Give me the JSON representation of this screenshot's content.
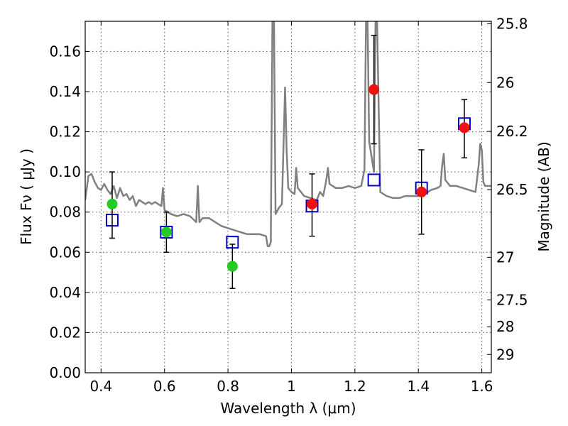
{
  "chart_data": {
    "type": "scatter",
    "xlabel": "Wavelength  λ (μm)",
    "ylabel": "Flux  Fν  ( μJy )",
    "ylabel_right": "Magnitude (AB)",
    "xlim": [
      0.35,
      1.63
    ],
    "ylim": [
      0.0,
      0.175
    ],
    "grid": true,
    "x_ticks": [
      0.4,
      0.6,
      0.8,
      1.0,
      1.2,
      1.4,
      1.6
    ],
    "x_tick_labels": [
      "0.4",
      "0.6",
      "0.8",
      "1",
      "1.2",
      "1.4",
      "1.6"
    ],
    "y_ticks": [
      0.0,
      0.02,
      0.04,
      0.06,
      0.08,
      0.1,
      0.12,
      0.14,
      0.16
    ],
    "y_tick_labels": [
      "0.00",
      "0.02",
      "0.04",
      "0.06",
      "0.08",
      "0.10",
      "0.12",
      "0.14",
      "0.16"
    ],
    "right_ticks": [
      {
        "label": "25.8",
        "flux": 0.1738
      },
      {
        "label": "26",
        "flux": 0.1445
      },
      {
        "label": "26.2",
        "flux": 0.1202
      },
      {
        "label": "26.5",
        "flux": 0.0912
      },
      {
        "label": "27",
        "flux": 0.0575
      },
      {
        "label": "27.5",
        "flux": 0.0363
      },
      {
        "label": "28",
        "flux": 0.0229
      },
      {
        "label": "29",
        "flux": 0.0091
      }
    ],
    "colors": {
      "model_line": "#808080",
      "green_points": "#22cc22",
      "red_points": "#ee1111",
      "model_squares": "#0000cc",
      "error_bars": "#000000"
    },
    "series": [
      {
        "kind": "line",
        "points": [
          [
            0.35,
            0.086
          ],
          [
            0.36,
            0.098
          ],
          [
            0.37,
            0.099
          ],
          [
            0.38,
            0.095
          ],
          [
            0.39,
            0.092
          ],
          [
            0.4,
            0.091
          ],
          [
            0.41,
            0.094
          ],
          [
            0.42,
            0.091
          ],
          [
            0.43,
            0.089
          ],
          [
            0.44,
            0.093
          ],
          [
            0.45,
            0.087
          ],
          [
            0.46,
            0.092
          ],
          [
            0.47,
            0.088
          ],
          [
            0.48,
            0.089
          ],
          [
            0.49,
            0.086
          ],
          [
            0.5,
            0.088
          ],
          [
            0.51,
            0.083
          ],
          [
            0.52,
            0.086
          ],
          [
            0.53,
            0.085
          ],
          [
            0.54,
            0.084
          ],
          [
            0.55,
            0.085
          ],
          [
            0.56,
            0.084
          ],
          [
            0.57,
            0.085
          ],
          [
            0.58,
            0.084
          ],
          [
            0.59,
            0.083
          ],
          [
            0.595,
            0.092
          ],
          [
            0.6,
            0.081
          ],
          [
            0.61,
            0.08
          ],
          [
            0.62,
            0.079
          ],
          [
            0.64,
            0.078
          ],
          [
            0.66,
            0.079
          ],
          [
            0.68,
            0.078
          ],
          [
            0.7,
            0.075
          ],
          [
            0.705,
            0.093
          ],
          [
            0.71,
            0.075
          ],
          [
            0.72,
            0.077
          ],
          [
            0.74,
            0.077
          ],
          [
            0.76,
            0.075
          ],
          [
            0.78,
            0.073
          ],
          [
            0.8,
            0.072
          ],
          [
            0.82,
            0.071
          ],
          [
            0.84,
            0.07
          ],
          [
            0.86,
            0.069
          ],
          [
            0.88,
            0.069
          ],
          [
            0.9,
            0.069
          ],
          [
            0.92,
            0.068
          ],
          [
            0.925,
            0.063
          ],
          [
            0.93,
            0.063
          ],
          [
            0.935,
            0.065
          ],
          [
            0.94,
            0.175
          ],
          [
            0.945,
            0.175
          ],
          [
            0.95,
            0.079
          ],
          [
            0.96,
            0.082
          ],
          [
            0.97,
            0.084
          ],
          [
            0.98,
            0.142
          ],
          [
            0.985,
            0.11
          ],
          [
            0.99,
            0.092
          ],
          [
            1.0,
            0.09
          ],
          [
            1.01,
            0.089
          ],
          [
            1.015,
            0.102
          ],
          [
            1.02,
            0.092
          ],
          [
            1.03,
            0.09
          ],
          [
            1.04,
            0.088
          ],
          [
            1.06,
            0.087
          ],
          [
            1.08,
            0.086
          ],
          [
            1.09,
            0.09
          ],
          [
            1.1,
            0.088
          ],
          [
            1.11,
            0.096
          ],
          [
            1.115,
            0.102
          ],
          [
            1.12,
            0.094
          ],
          [
            1.14,
            0.092
          ],
          [
            1.16,
            0.092
          ],
          [
            1.18,
            0.093
          ],
          [
            1.2,
            0.092
          ],
          [
            1.22,
            0.093
          ],
          [
            1.23,
            0.101
          ],
          [
            1.235,
            0.175
          ],
          [
            1.24,
            0.175
          ],
          [
            1.245,
            0.115
          ],
          [
            1.26,
            0.1
          ],
          [
            1.265,
            0.175
          ],
          [
            1.27,
            0.175
          ],
          [
            1.28,
            0.09
          ],
          [
            1.29,
            0.089
          ],
          [
            1.3,
            0.088
          ],
          [
            1.32,
            0.087
          ],
          [
            1.34,
            0.087
          ],
          [
            1.36,
            0.088
          ],
          [
            1.38,
            0.088
          ],
          [
            1.4,
            0.088
          ],
          [
            1.42,
            0.089
          ],
          [
            1.44,
            0.091
          ],
          [
            1.46,
            0.092
          ],
          [
            1.47,
            0.093
          ],
          [
            1.475,
            0.103
          ],
          [
            1.48,
            0.109
          ],
          [
            1.485,
            0.096
          ],
          [
            1.5,
            0.093
          ],
          [
            1.52,
            0.093
          ],
          [
            1.54,
            0.092
          ],
          [
            1.56,
            0.091
          ],
          [
            1.58,
            0.09
          ],
          [
            1.59,
            0.103
          ],
          [
            1.595,
            0.114
          ],
          [
            1.6,
            0.111
          ],
          [
            1.605,
            0.095
          ],
          [
            1.61,
            0.093
          ],
          [
            1.63,
            0.093
          ]
        ]
      },
      {
        "kind": "observed",
        "color": "green",
        "points": [
          {
            "x": 0.435,
            "y": 0.084,
            "err_lo": 0.067,
            "err_hi": 0.1
          },
          {
            "x": 0.606,
            "y": 0.07,
            "err_lo": 0.06,
            "err_hi": 0.08
          },
          {
            "x": 0.814,
            "y": 0.053,
            "err_lo": 0.042,
            "err_hi": 0.064
          }
        ]
      },
      {
        "kind": "observed",
        "color": "red",
        "points": [
          {
            "x": 1.065,
            "y": 0.084,
            "err_lo": 0.068,
            "err_hi": 0.099
          },
          {
            "x": 1.26,
            "y": 0.141,
            "err_lo": 0.114,
            "err_hi": 0.168
          },
          {
            "x": 1.41,
            "y": 0.09,
            "err_lo": 0.069,
            "err_hi": 0.111
          },
          {
            "x": 1.545,
            "y": 0.122,
            "err_lo": 0.107,
            "err_hi": 0.136
          }
        ]
      },
      {
        "kind": "model_band",
        "points": [
          {
            "x": 0.435,
            "y": 0.076
          },
          {
            "x": 0.606,
            "y": 0.07
          },
          {
            "x": 0.814,
            "y": 0.065
          },
          {
            "x": 1.065,
            "y": 0.083
          },
          {
            "x": 1.26,
            "y": 0.096
          },
          {
            "x": 1.41,
            "y": 0.092
          },
          {
            "x": 1.545,
            "y": 0.124
          }
        ]
      }
    ]
  }
}
